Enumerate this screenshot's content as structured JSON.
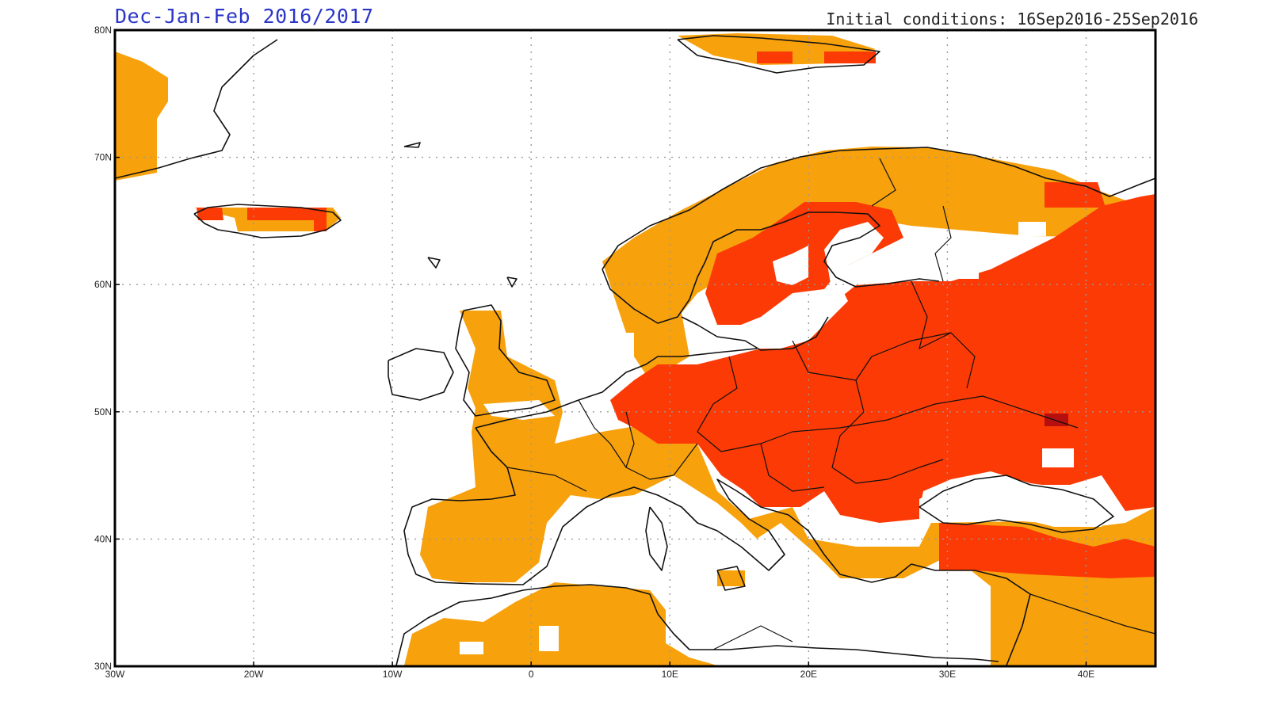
{
  "header": {
    "title": "Dec-Jan-Feb 2016/2017",
    "initial_conditions": "Initial conditions: 16Sep2016-25Sep2016"
  },
  "map": {
    "lon_range": [
      -30,
      45
    ],
    "lat_range": [
      30,
      80
    ],
    "lon_ticks": [
      {
        "value": -30,
        "label": "30W"
      },
      {
        "value": -20,
        "label": "20W"
      },
      {
        "value": -10,
        "label": "10W"
      },
      {
        "value": 0,
        "label": "0"
      },
      {
        "value": 10,
        "label": "10E"
      },
      {
        "value": 20,
        "label": "20E"
      },
      {
        "value": 30,
        "label": "30E"
      },
      {
        "value": 40,
        "label": "40E"
      }
    ],
    "lat_ticks": [
      {
        "value": 30,
        "label": "30N"
      },
      {
        "value": 40,
        "label": "40N"
      },
      {
        "value": 50,
        "label": "50N"
      },
      {
        "value": 60,
        "label": "60N"
      },
      {
        "value": 70,
        "label": "70N"
      },
      {
        "value": 80,
        "label": "80N"
      }
    ],
    "grid": "dotted",
    "colors": {
      "moderate": "#f7a10c",
      "strong": "#fb3a05",
      "extreme": "#b50f0f",
      "coast": "#111111",
      "grid": "#9a9a9a"
    }
  }
}
